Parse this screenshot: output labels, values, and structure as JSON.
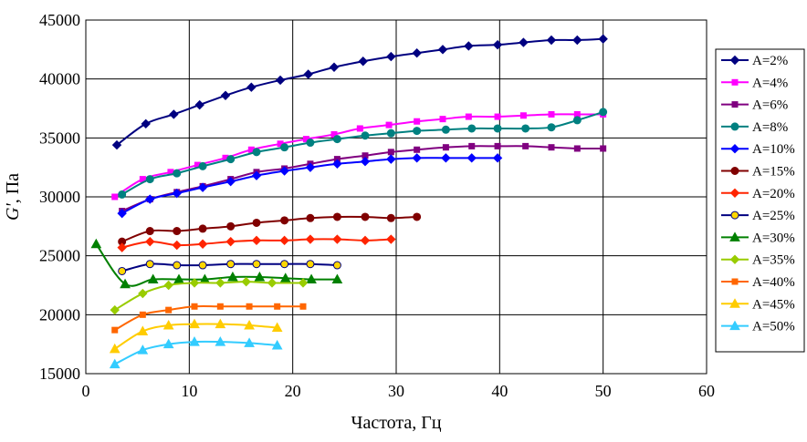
{
  "chart_data": {
    "type": "line",
    "title": "",
    "xlabel": "Частота, Гц",
    "ylabel_main": "G'",
    "ylabel_unit": ", Па",
    "xlim": [
      0,
      60
    ],
    "ylim": [
      15000,
      45000
    ],
    "xticks": [
      0,
      10,
      20,
      30,
      40,
      50,
      60
    ],
    "yticks": [
      15000,
      20000,
      25000,
      30000,
      35000,
      40000,
      45000
    ],
    "xtick_labels": [
      "0",
      "10",
      "20",
      "30",
      "40",
      "50",
      "60"
    ],
    "ytick_labels": [
      "15000",
      "20000",
      "25000",
      "30000",
      "35000",
      "40000",
      "45000"
    ],
    "grid": true,
    "legend_position": "right",
    "series": [
      {
        "name": "A=2%",
        "color": "#000080",
        "marker": "diamond",
        "x": [
          3,
          5.8,
          8.5,
          11,
          13.5,
          16,
          18.8,
          21.5,
          24,
          26.8,
          29.5,
          32,
          34.5,
          37,
          39.8,
          42.3,
          45,
          47.5,
          50
        ],
        "y": [
          34400,
          36200,
          37000,
          37800,
          38600,
          39300,
          39900,
          40400,
          41000,
          41500,
          41900,
          42200,
          42500,
          42800,
          42900,
          43100,
          43300,
          43300,
          43400
        ]
      },
      {
        "name": "A=4%",
        "color": "#FF00FF",
        "marker": "square",
        "x": [
          2.8,
          5.5,
          8.2,
          10.8,
          13.5,
          16,
          18.8,
          21.3,
          24,
          26.5,
          29.3,
          32,
          34.5,
          37,
          39.8,
          42.3,
          45,
          47.5,
          50
        ],
        "y": [
          30000,
          31500,
          32100,
          32700,
          33300,
          34000,
          34500,
          34900,
          35300,
          35800,
          36100,
          36400,
          36600,
          36800,
          36800,
          36900,
          37000,
          37000,
          37000
        ]
      },
      {
        "name": "A=6%",
        "color": "#800080",
        "marker": "square",
        "x": [
          3.5,
          6.2,
          8.8,
          11.3,
          14,
          16.5,
          19.2,
          21.7,
          24.3,
          27,
          29.5,
          32,
          34.8,
          37.3,
          39.8,
          42.5,
          45,
          47.5,
          50
        ],
        "y": [
          28800,
          29800,
          30400,
          30900,
          31500,
          32100,
          32400,
          32800,
          33200,
          33500,
          33800,
          34000,
          34200,
          34300,
          34300,
          34300,
          34200,
          34100,
          34100
        ]
      },
      {
        "name": "A=8%",
        "color": "#008080",
        "marker": "circle",
        "x": [
          3.5,
          6.2,
          8.8,
          11.3,
          14,
          16.5,
          19.2,
          21.7,
          24.3,
          27,
          29.5,
          32,
          34.8,
          37.3,
          39.8,
          42.5,
          45,
          47.5,
          50
        ],
        "y": [
          30200,
          31500,
          32000,
          32600,
          33200,
          33800,
          34200,
          34600,
          34900,
          35200,
          35400,
          35600,
          35700,
          35800,
          35800,
          35800,
          35900,
          36500,
          37200
        ]
      },
      {
        "name": "A=10%",
        "color": "#0000FF",
        "marker": "diamond",
        "x": [
          3.5,
          6.2,
          8.8,
          11.3,
          14,
          16.5,
          19.2,
          21.7,
          24.3,
          27,
          29.5,
          32,
          34.8,
          37.3,
          39.8
        ],
        "y": [
          28600,
          29800,
          30300,
          30800,
          31300,
          31800,
          32200,
          32500,
          32800,
          33000,
          33200,
          33300,
          33300,
          33300,
          33300
        ]
      },
      {
        "name": "A=15%",
        "color": "#800000",
        "marker": "circle",
        "x": [
          3.5,
          6.2,
          8.8,
          11.3,
          14,
          16.5,
          19.2,
          21.7,
          24.3,
          27,
          29.5,
          32
        ],
        "y": [
          26200,
          27100,
          27100,
          27300,
          27500,
          27800,
          28000,
          28200,
          28300,
          28300,
          28200,
          28300
        ]
      },
      {
        "name": "A=20%",
        "color": "#FF2400",
        "marker": "diamond",
        "x": [
          3.5,
          6.2,
          8.8,
          11.3,
          14,
          16.5,
          19.2,
          21.7,
          24.3,
          27,
          29.5
        ],
        "y": [
          25700,
          26200,
          25900,
          26000,
          26200,
          26300,
          26300,
          26400,
          26400,
          26300,
          26400
        ]
      },
      {
        "name": "A=25%",
        "color": "#000080",
        "fill": "#FFD700",
        "marker": "circle",
        "x": [
          3.5,
          6.2,
          8.8,
          11.3,
          14,
          16.5,
          19.2,
          21.7,
          24.3
        ],
        "y": [
          23700,
          24300,
          24200,
          24200,
          24300,
          24300,
          24300,
          24300,
          24200
        ]
      },
      {
        "name": "A=30%",
        "color": "#008000",
        "marker": "triangle",
        "x": [
          1,
          3.8,
          6.5,
          9,
          11.5,
          14.2,
          16.8,
          19.3,
          21.8,
          24.3
        ],
        "y": [
          26000,
          22600,
          23000,
          23000,
          23000,
          23200,
          23200,
          23100,
          23000,
          23000
        ]
      },
      {
        "name": "A=35%",
        "color": "#99CC00",
        "marker": "diamond",
        "x": [
          2.8,
          5.5,
          8,
          10.5,
          13,
          15.5,
          18,
          21
        ],
        "y": [
          20400,
          21800,
          22500,
          22700,
          22700,
          22800,
          22700,
          22700
        ]
      },
      {
        "name": "A=40%",
        "color": "#FF6600",
        "marker": "square",
        "x": [
          2.8,
          5.5,
          8,
          10.5,
          13,
          15.8,
          18.5,
          21
        ],
        "y": [
          18700,
          20000,
          20400,
          20700,
          20700,
          20700,
          20700,
          20700
        ]
      },
      {
        "name": "A=45%",
        "color": "#FFCC00",
        "marker": "triangle",
        "x": [
          2.8,
          5.5,
          8,
          10.5,
          13,
          15.8,
          18.5
        ],
        "y": [
          17100,
          18600,
          19100,
          19200,
          19200,
          19100,
          18900
        ]
      },
      {
        "name": "A=50%",
        "color": "#33CCFF",
        "marker": "triangle",
        "x": [
          2.8,
          5.5,
          8,
          10.5,
          13,
          15.8,
          18.5
        ],
        "y": [
          15800,
          17000,
          17500,
          17700,
          17700,
          17600,
          17400
        ]
      }
    ]
  }
}
